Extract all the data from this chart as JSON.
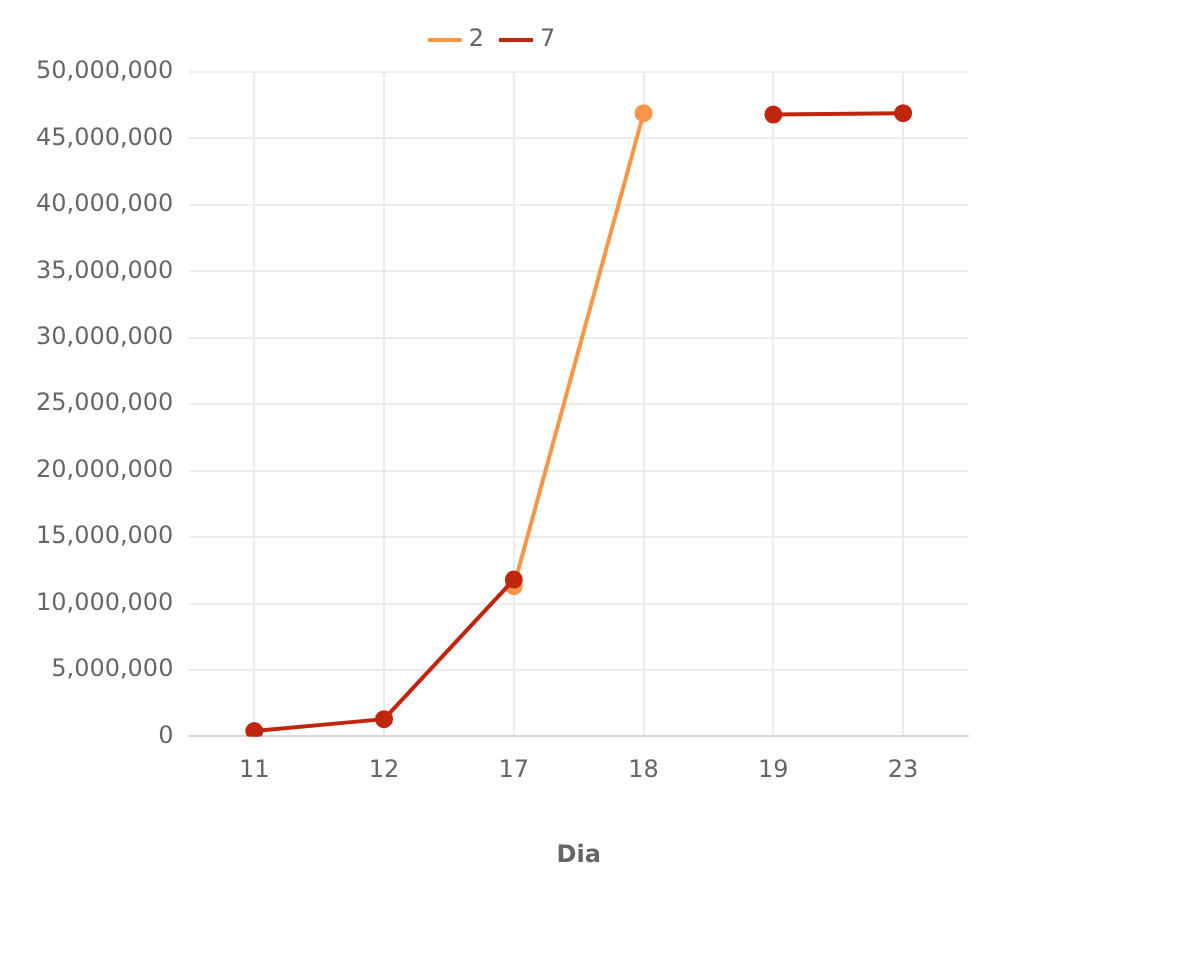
{
  "chart_data": {
    "type": "line",
    "xlabel": "Dia",
    "categories": [
      "11",
      "12",
      "17",
      "18",
      "19",
      "23"
    ],
    "series": [
      {
        "name": "2",
        "color": "#f79646",
        "values": [
          null,
          null,
          11300000,
          46900000,
          null,
          null
        ]
      },
      {
        "name": "7",
        "color": "#c0250e",
        "values": [
          400000,
          1300000,
          11800000,
          null,
          46800000,
          46900000
        ]
      }
    ],
    "ylim": [
      0,
      50000000
    ],
    "yticks": [
      0,
      {
        "value": 5000000,
        "label": "5,000,000"
      },
      {
        "value": 10000000,
        "label": "10,000,000"
      },
      {
        "value": 15000000,
        "label": "15,000,000"
      },
      {
        "value": 20000000,
        "label": "20,000,000"
      },
      {
        "value": 25000000,
        "label": "25,000,000"
      },
      {
        "value": 30000000,
        "label": "30,000,000"
      },
      {
        "value": 35000000,
        "label": "35,000,000"
      },
      {
        "value": 40000000,
        "label": "40,000,000"
      },
      {
        "value": 45000000,
        "label": "45,000,000"
      },
      {
        "value": 50000000,
        "label": "50,000,000"
      }
    ],
    "grid": true,
    "legend": "top",
    "marker": "circle",
    "line_style": "solid"
  }
}
